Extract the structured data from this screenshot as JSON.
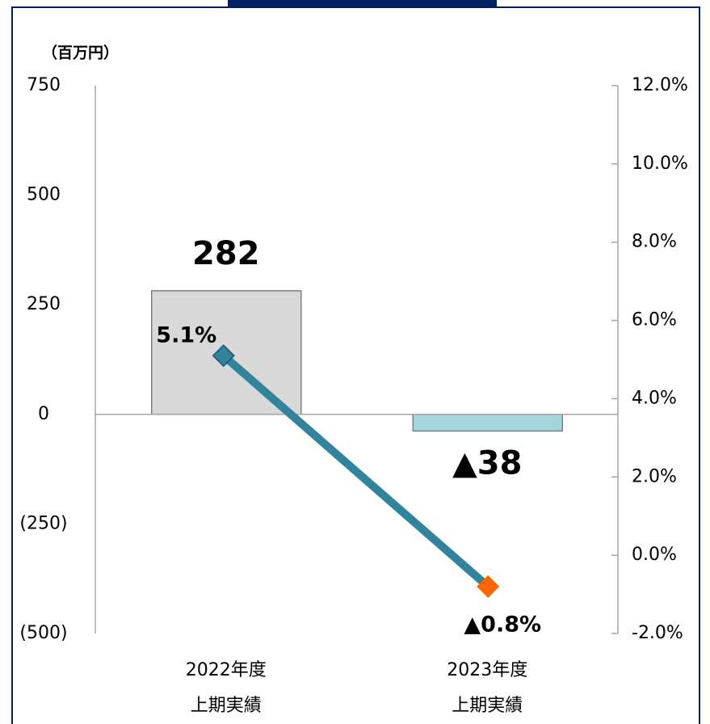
{
  "chart_data": {
    "type": "bar_line",
    "unit_label": "（百万円）",
    "categories": [
      [
        "2022年度",
        "上期実績"
      ],
      [
        "2023年度",
        "上期実績"
      ]
    ],
    "series": [
      {
        "type": "bar",
        "axis": "y",
        "colors": [
          "#d9d9d9",
          "#a5d6dd"
        ],
        "stroke": "#7f7f7f",
        "values": [
          282,
          -38
        ],
        "value_labels": [
          "282",
          "▲38"
        ]
      },
      {
        "type": "line",
        "axis": "y2",
        "color": "#31849b",
        "marker_colors": [
          "#31849b",
          "#ff6600"
        ],
        "values": [
          5.1,
          -0.8
        ],
        "value_labels": [
          "5.1%",
          "▲0.8%"
        ]
      }
    ],
    "ylim": [
      -500,
      750
    ],
    "yticks": [
      {
        "value": -500,
        "label": "(500)"
      },
      {
        "value": -250,
        "label": "(250)"
      },
      0,
      250,
      500,
      750
    ],
    "y2lim": [
      -2,
      12
    ],
    "y2ticks": [
      {
        "value": -2,
        "label": "-2.0%"
      },
      {
        "value": 0,
        "label": "0.0%"
      },
      {
        "value": 2,
        "label": "2.0%"
      },
      {
        "value": 4,
        "label": "4.0%"
      },
      {
        "value": 6,
        "label": "6.0%"
      },
      {
        "value": 8,
        "label": "8.0%"
      },
      {
        "value": 10,
        "label": "10.0%"
      },
      {
        "value": 12,
        "label": "12.0%"
      }
    ],
    "negative_color": "#ff0000"
  }
}
